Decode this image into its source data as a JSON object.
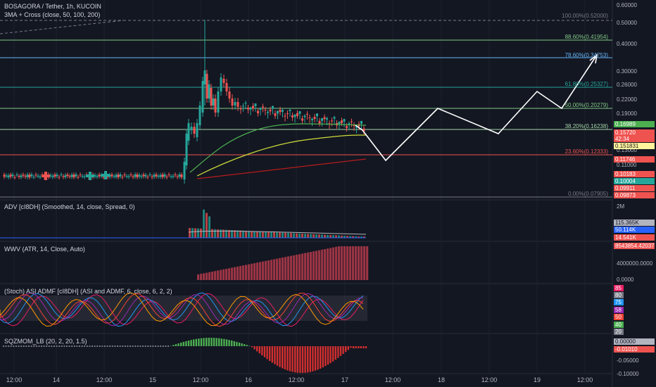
{
  "header": {
    "symbol": "BOSAGORA / Tether, 1h, KUCOIN",
    "indicator_main": "3MA + Cross (close, 50, 100, 200)",
    "indicator_adv": "ADV [cI8DH] (Smoothed, 14, close, Spread, 0)",
    "indicator_wwv": "WWV (ATR, 14, Close, Auto)",
    "indicator_stoch": "(Stoch) ASI ADMF [cI8DH] (ASI and ADMF, 6, close, 6, 2, 2)",
    "indicator_sqz": "SQZMOM_LB (20, 2, 20, 1.5)"
  },
  "price_axis": [
    "0.60000",
    "0.50000",
    "0.40000",
    "0.30000",
    "0.26000",
    "0.22000",
    "0.19000",
    "0.13000",
    "0.11000"
  ],
  "fib_levels": [
    {
      "label": "100.00%(0.52000)",
      "color": "#787b86"
    },
    {
      "label": "88.60%(0.41954)",
      "color": "#81c784"
    },
    {
      "label": "78.60%(0.34753)",
      "color": "#64b5f6"
    },
    {
      "label": "61.80%(0.25327)",
      "color": "#26a69a"
    },
    {
      "label": "50.00%(0.20279)",
      "color": "#81c784"
    },
    {
      "label": "38.20%(0.16238)",
      "color": "#a5d6a7"
    },
    {
      "label": "23.60%(0.12333)",
      "color": "#ef5350"
    },
    {
      "label": "0.00%(0.07905)",
      "color": "#787b86"
    }
  ],
  "price_badges": [
    {
      "text": "0.16989",
      "bg": "#4caf50",
      "fg": "#ffffff"
    },
    {
      "text": "0.15720",
      "bg": "#ef5350",
      "fg": "#ffffff"
    },
    {
      "text": "42:34",
      "bg": "#ef5350",
      "fg": "#ffffff"
    },
    {
      "text": "0.151831",
      "bg": "#fff59d",
      "fg": "#131722"
    },
    {
      "text": "0.11746",
      "bg": "#ef5350",
      "fg": "#ffffff"
    },
    {
      "text": "0.10183",
      "bg": "#ef5350",
      "fg": "#ffffff"
    },
    {
      "text": "0.10004",
      "bg": "#26a69a",
      "fg": "#ffffff"
    },
    {
      "text": "0.09911",
      "bg": "#ef5350",
      "fg": "#ffffff"
    },
    {
      "text": "0.09873",
      "bg": "#ef5350",
      "fg": "#ffffff"
    }
  ],
  "adv": {
    "axis_top": "2M",
    "badges": [
      {
        "text": "115.365K",
        "bg": "#b2b5be",
        "fg": "#131722"
      },
      {
        "text": "50.114K",
        "bg": "#2962ff",
        "fg": "#ffffff"
      },
      {
        "text": "14.541K",
        "bg": "#ef5350",
        "fg": "#ffffff"
      }
    ]
  },
  "wwv": {
    "badge": {
      "text": "8543854.42037",
      "bg": "#ef5350",
      "fg": "#ffffff"
    },
    "axis": [
      "4000000.0000",
      "0.0000"
    ]
  },
  "stoch": {
    "badges": [
      {
        "text": "85",
        "bg": "#e91e63",
        "fg": "#ffffff"
      },
      {
        "text": "80",
        "bg": "#787b86",
        "fg": "#ffffff"
      },
      {
        "text": "75",
        "bg": "#2196f3",
        "fg": "#ffffff"
      },
      {
        "text": "58",
        "bg": "#9c27b0",
        "fg": "#ffffff"
      },
      {
        "text": "50",
        "bg": "#f44336",
        "fg": "#ffffff"
      },
      {
        "text": "40",
        "bg": "#4caf50",
        "fg": "#ffffff"
      },
      {
        "text": "20",
        "bg": "#787b86",
        "fg": "#ffffff"
      }
    ]
  },
  "sqz": {
    "badges": [
      {
        "text": "0.00000",
        "bg": "#b2b5be",
        "fg": "#131722"
      },
      {
        "text": "-0.01010",
        "bg": "#ef5350",
        "fg": "#ffffff"
      }
    ],
    "axis": [
      "-0.05000",
      "-0.10000"
    ]
  },
  "time_axis": [
    "12:00",
    "14",
    "12:00",
    "15",
    "12:00",
    "16",
    "12:00",
    "17",
    "12:00",
    "18",
    "12:00",
    "19",
    "12:00"
  ],
  "colors": {
    "bg": "#131722",
    "up": "#26a69a",
    "down": "#ef5350",
    "grid": "#1e222d"
  }
}
